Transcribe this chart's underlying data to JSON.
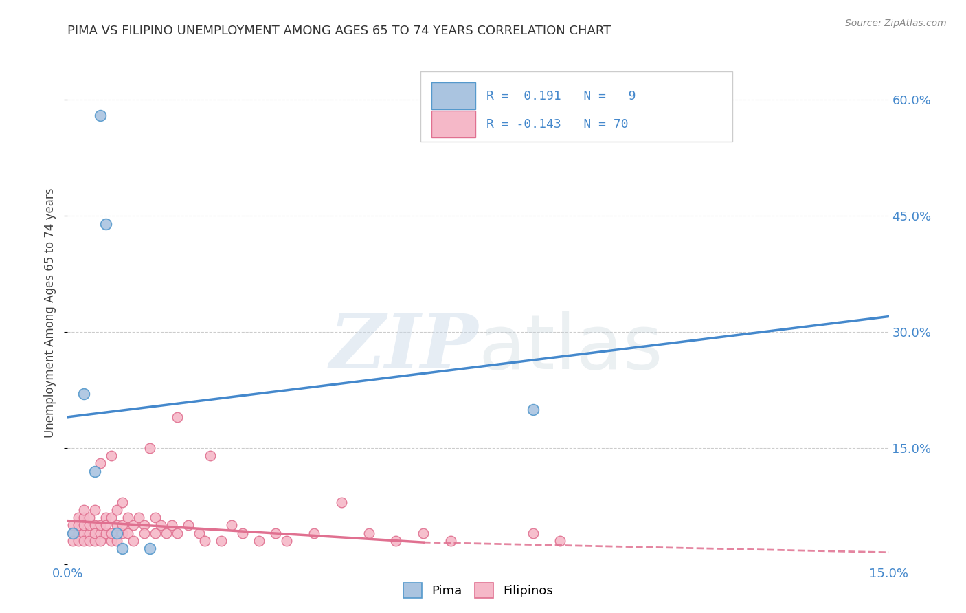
{
  "title": "PIMA VS FILIPINO UNEMPLOYMENT AMONG AGES 65 TO 74 YEARS CORRELATION CHART",
  "source_text": "Source: ZipAtlas.com",
  "ylabel": "Unemployment Among Ages 65 to 74 years",
  "xlim": [
    0.0,
    0.15
  ],
  "ylim": [
    0.0,
    0.65
  ],
  "pima_color": "#aac4e0",
  "pima_edge_color": "#5599cc",
  "filipino_color": "#f5b8c8",
  "filipino_edge_color": "#e07090",
  "blue_line_color": "#4488cc",
  "pink_line_color": "#e07090",
  "pima_R": 0.191,
  "pima_N": 9,
  "filipino_R": -0.143,
  "filipino_N": 70,
  "pima_x": [
    0.001,
    0.003,
    0.005,
    0.006,
    0.007,
    0.009,
    0.01,
    0.015,
    0.085
  ],
  "pima_y": [
    0.04,
    0.22,
    0.12,
    0.58,
    0.44,
    0.04,
    0.02,
    0.02,
    0.2
  ],
  "filipino_x": [
    0.001,
    0.001,
    0.001,
    0.002,
    0.002,
    0.002,
    0.002,
    0.003,
    0.003,
    0.003,
    0.003,
    0.003,
    0.004,
    0.004,
    0.004,
    0.004,
    0.005,
    0.005,
    0.005,
    0.005,
    0.006,
    0.006,
    0.006,
    0.006,
    0.007,
    0.007,
    0.007,
    0.008,
    0.008,
    0.008,
    0.008,
    0.009,
    0.009,
    0.009,
    0.01,
    0.01,
    0.01,
    0.011,
    0.011,
    0.012,
    0.012,
    0.013,
    0.014,
    0.014,
    0.015,
    0.016,
    0.016,
    0.017,
    0.018,
    0.019,
    0.02,
    0.02,
    0.022,
    0.024,
    0.025,
    0.026,
    0.028,
    0.03,
    0.032,
    0.035,
    0.038,
    0.04,
    0.045,
    0.05,
    0.055,
    0.06,
    0.065,
    0.07,
    0.085,
    0.09
  ],
  "filipino_y": [
    0.04,
    0.05,
    0.03,
    0.04,
    0.06,
    0.03,
    0.05,
    0.04,
    0.06,
    0.03,
    0.05,
    0.07,
    0.04,
    0.05,
    0.03,
    0.06,
    0.05,
    0.03,
    0.07,
    0.04,
    0.04,
    0.05,
    0.03,
    0.13,
    0.06,
    0.04,
    0.05,
    0.03,
    0.06,
    0.04,
    0.14,
    0.05,
    0.07,
    0.03,
    0.08,
    0.04,
    0.05,
    0.06,
    0.04,
    0.05,
    0.03,
    0.06,
    0.05,
    0.04,
    0.15,
    0.04,
    0.06,
    0.05,
    0.04,
    0.05,
    0.19,
    0.04,
    0.05,
    0.04,
    0.03,
    0.14,
    0.03,
    0.05,
    0.04,
    0.03,
    0.04,
    0.03,
    0.04,
    0.08,
    0.04,
    0.03,
    0.04,
    0.03,
    0.04,
    0.03
  ],
  "grid_color": "#cccccc",
  "background_color": "#ffffff"
}
